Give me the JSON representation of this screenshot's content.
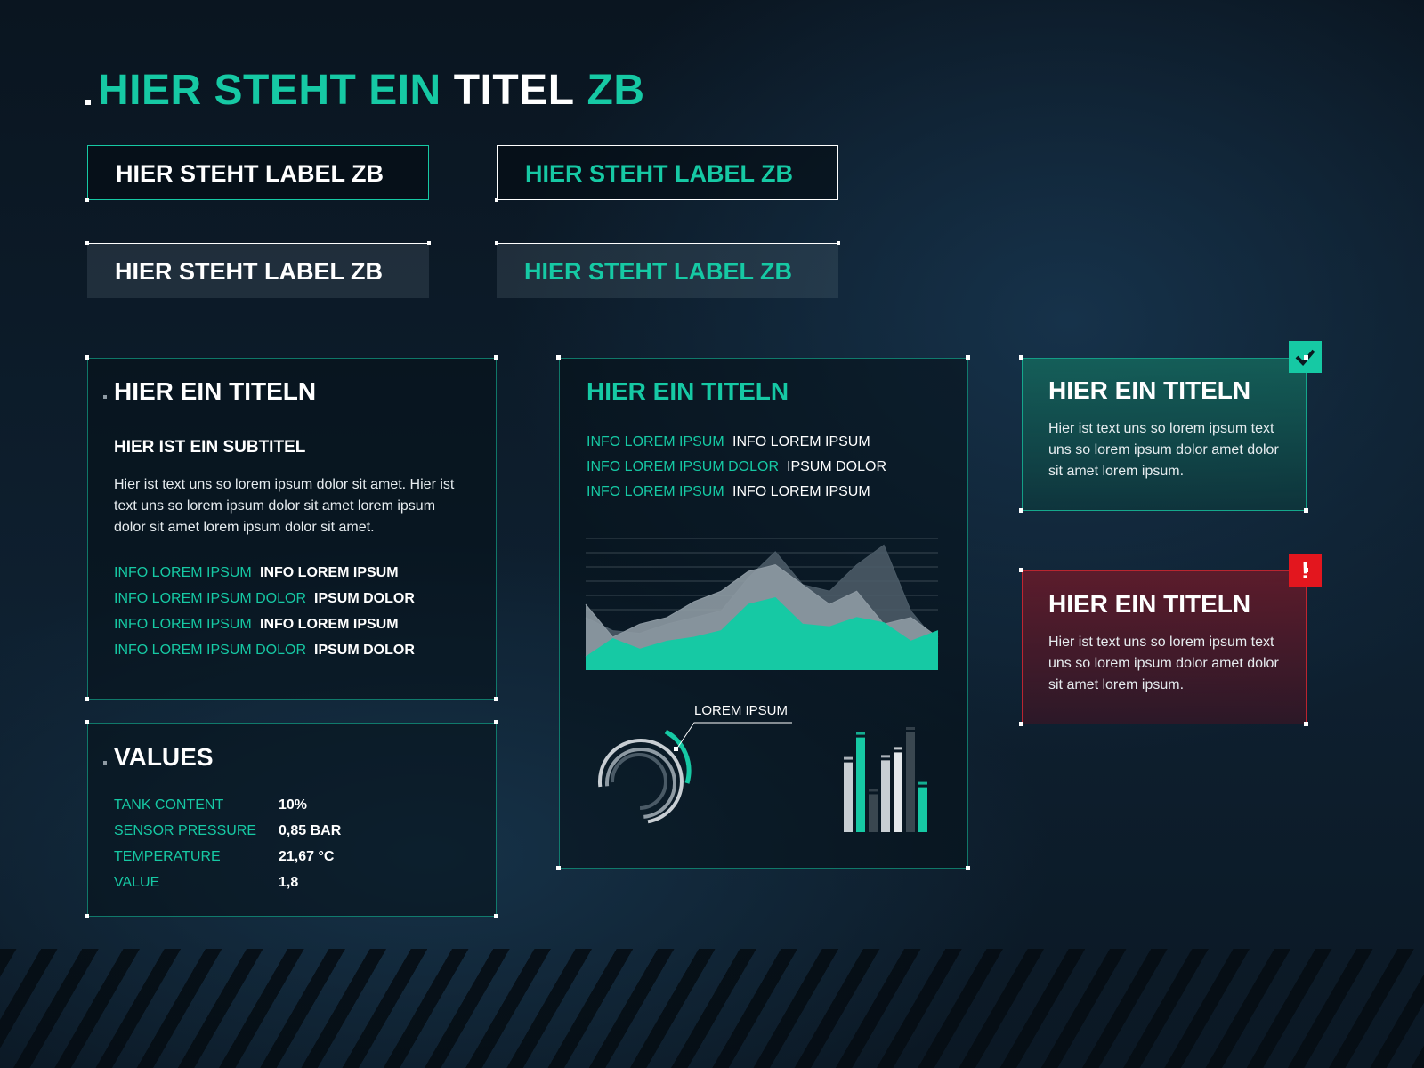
{
  "header": {
    "title_parts": [
      "HIER STEHT EIN",
      "TITEL",
      "ZB"
    ]
  },
  "labels": [
    "HIER STEHT LABEL ZB",
    "HIER STEHT LABEL ZB",
    "HIER STEHT LABEL ZB",
    "HIER STEHT LABEL ZB"
  ],
  "info_panel": {
    "title": "HIER EIN TITELN",
    "subtitle": "HIER IST EIN SUBTITEL",
    "text": "Hier ist text uns so lorem ipsum dolor sit amet. Hier ist text uns so lorem ipsum dolor sit amet  lorem ipsum dolor sit amet lorem ipsum dolor sit amet.",
    "rows": [
      [
        "INFO LOREM IPSUM",
        "INFO LOREM IPSUM"
      ],
      [
        "INFO LOREM IPSUM DOLOR",
        "IPSUM DOLOR"
      ],
      [
        "INFO LOREM IPSUM",
        "INFO LOREM IPSUM"
      ],
      [
        "INFO LOREM IPSUM DOLOR",
        "IPSUM DOLOR"
      ]
    ]
  },
  "values_panel": {
    "title": "VALUES",
    "rows": [
      [
        "TANK CONTENT",
        "10%"
      ],
      [
        "SENSOR PRESSURE",
        "0,85 BAR"
      ],
      [
        "TEMPERATURE",
        "21,67 °C"
      ],
      [
        "VALUE",
        "1,8"
      ]
    ]
  },
  "chart_panel": {
    "title": "HIER EIN TITELN",
    "rows": [
      [
        "INFO LOREM IPSUM",
        "INFO LOREM IPSUM"
      ],
      [
        "INFO LOREM IPSUM DOLOR",
        "IPSUM DOLOR"
      ],
      [
        "INFO LOREM IPSUM",
        "INFO LOREM IPSUM"
      ]
    ],
    "area_chart": {
      "type": "area",
      "series": [
        {
          "color": "#4a5a66",
          "values": [
            40,
            30,
            28,
            35,
            40,
            45,
            70,
            90,
            65,
            60,
            80,
            95,
            45,
            20
          ]
        },
        {
          "color": "#8e9aa3",
          "values": [
            50,
            25,
            35,
            40,
            52,
            60,
            75,
            80,
            65,
            50,
            60,
            35,
            40,
            25
          ]
        },
        {
          "color": "#16c9a4",
          "values": [
            10,
            24,
            16,
            22,
            25,
            30,
            50,
            55,
            35,
            33,
            40,
            36,
            22,
            30
          ]
        }
      ]
    },
    "gauge_label": "LOREM IPSUM",
    "bar_chart": {
      "type": "bar",
      "colors": [
        "#c8ced3",
        "#16c9a4",
        "#3a4750",
        "#c8ced3",
        "#e4e8eb",
        "#3a4750",
        "#16c9a4"
      ],
      "values": [
        70,
        95,
        38,
        72,
        80,
        100,
        45
      ]
    }
  },
  "success_card": {
    "title": "HIER EIN TITELN",
    "text": "Hier ist text uns so lorem ipsum text uns so lorem ipsum dolor amet dolor sit amet lorem ipsum."
  },
  "error_card": {
    "title": "HIER EIN TITELN",
    "text": "Hier ist text uns so lorem ipsum text uns so lorem ipsum dolor amet dolor sit amet lorem ipsum.",
    "icon": "!"
  }
}
